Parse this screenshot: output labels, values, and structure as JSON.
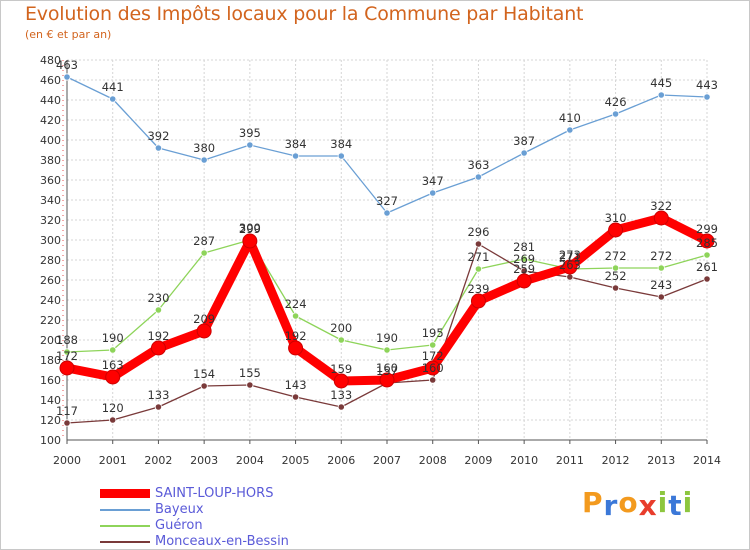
{
  "title": "Evolution des Impôts locaux pour la Commune par Habitant",
  "subtitle": "(en € et par an)",
  "brand": {
    "text": "Proxiti",
    "letters": [
      "P",
      "r",
      "o",
      "x",
      "i",
      "t",
      "i"
    ],
    "colors": [
      "#f39a1e",
      "#3b78d8",
      "#f39a1e",
      "#e83d2c",
      "#8dc63f",
      "#3b78d8",
      "#8dc63f"
    ]
  },
  "chart_data": {
    "type": "line",
    "title": "Evolution des Impôts locaux pour la Commune par Habitant",
    "subtitle": "(en € et par an)",
    "xlabel": "",
    "ylabel": "",
    "x": [
      "2000",
      "2001",
      "2002",
      "2003",
      "2004",
      "2005",
      "2006",
      "2007",
      "2008",
      "2009",
      "2010",
      "2011",
      "2012",
      "2013",
      "2014"
    ],
    "ylim": [
      100,
      480
    ],
    "yticks": [
      "100",
      "120",
      "140",
      "160",
      "180",
      "200",
      "220",
      "240",
      "260",
      "280",
      "300",
      "320",
      "340",
      "360",
      "380",
      "400",
      "420",
      "440",
      "460",
      "480"
    ],
    "grid": true,
    "legend_position": "bottom-left",
    "series": [
      {
        "name": "SAINT-LOUP-HORS",
        "color": "#ff0000",
        "emphasis": "thick",
        "values": [
          172,
          163,
          192,
          209,
          299,
          192,
          159,
          160,
          172,
          239,
          259,
          273,
          310,
          322,
          299
        ],
        "labels": [
          "172",
          "163",
          "192",
          "209",
          "299",
          "192",
          "159",
          "160",
          "172",
          "239",
          "259",
          "273",
          "310",
          "322",
          "299"
        ]
      },
      {
        "name": "Bayeux",
        "color": "#6a9fd4",
        "emphasis": "thin",
        "values": [
          463,
          441,
          392,
          380,
          395,
          384,
          384,
          327,
          347,
          363,
          387,
          410,
          426,
          445,
          443
        ],
        "labels": [
          "463",
          "441",
          "392",
          "380",
          "395",
          "384",
          "384",
          "327",
          "347",
          "363",
          "387",
          "410",
          "426",
          "445",
          "443"
        ]
      },
      {
        "name": "Guéron",
        "color": "#8ed45a",
        "emphasis": "thin",
        "values": [
          188,
          190,
          230,
          287,
          300,
          224,
          200,
          190,
          195,
          271,
          281,
          271,
          272,
          272,
          285
        ],
        "labels": [
          "188",
          "190",
          "230",
          "287",
          "300",
          "224",
          "200",
          "190",
          "195",
          "271",
          "281",
          "271",
          "272",
          "272",
          "285"
        ]
      },
      {
        "name": "Monceaux-en-Bessin",
        "color": "#7a3a3a",
        "emphasis": "thin",
        "values": [
          117,
          120,
          133,
          154,
          155,
          143,
          133,
          157,
          160,
          296,
          269,
          263,
          252,
          243,
          261
        ],
        "labels": [
          "117",
          "120",
          "133",
          "154",
          "155",
          "143",
          "133",
          "157",
          "160",
          "296",
          "269",
          "263",
          "252",
          "243",
          "261"
        ]
      }
    ]
  }
}
